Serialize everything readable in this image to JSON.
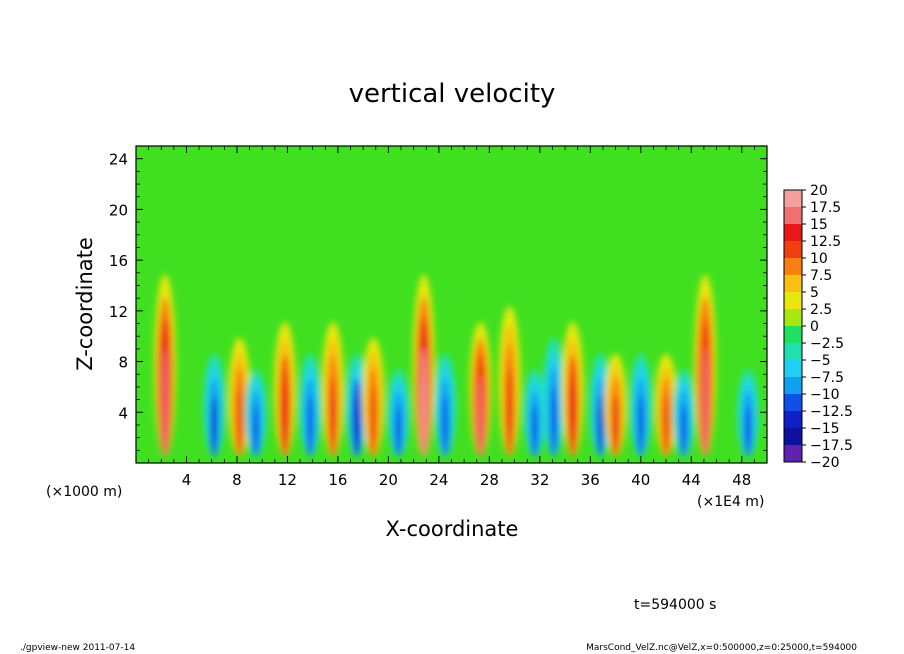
{
  "chart_data": {
    "type": "heatmap",
    "title": "vertical velocity",
    "xlabel": "X-coordinate",
    "ylabel": "Z-coordinate",
    "x_unit": "(×1E4 m)",
    "y_unit": "(×1000 m)",
    "xlim": [
      0,
      50
    ],
    "ylim": [
      0,
      25
    ],
    "x_ticks": [
      "4",
      "8",
      "12",
      "16",
      "20",
      "24",
      "28",
      "32",
      "36",
      "40",
      "44",
      "48"
    ],
    "y_ticks": [
      "4",
      "8",
      "12",
      "16",
      "20",
      "24"
    ],
    "colorbar": {
      "levels": [
        "20",
        "17.5",
        "15",
        "12.5",
        "10",
        "7.5",
        "5",
        "2.5",
        "0",
        "−2.5",
        "−5",
        "−7.5",
        "−10",
        "−12.5",
        "−15",
        "−17.5",
        "−20"
      ],
      "colors": [
        "#f5a0a0",
        "#f07070",
        "#e81818",
        "#f04010",
        "#f88010",
        "#f8c010",
        "#e8e810",
        "#a8e810",
        "#40e020",
        "#20e060",
        "#20e0b0",
        "#20d0f0",
        "#10a0f0",
        "#1050e8",
        "#1020c8",
        "#1010a0",
        "#6020b0"
      ]
    },
    "features": [
      {
        "x": 2.3,
        "top": 12,
        "v": 18
      },
      {
        "x": 6.2,
        "top": 7,
        "v": -14
      },
      {
        "x": 8.2,
        "top": 8,
        "v": 13
      },
      {
        "x": 9.5,
        "top": 6,
        "v": -13
      },
      {
        "x": 11.8,
        "top": 9,
        "v": 15
      },
      {
        "x": 13.8,
        "top": 7,
        "v": -13
      },
      {
        "x": 15.6,
        "top": 9,
        "v": 14
      },
      {
        "x": 17.5,
        "top": 7,
        "v": -15
      },
      {
        "x": 18.8,
        "top": 8,
        "v": 13
      },
      {
        "x": 20.8,
        "top": 6,
        "v": -12
      },
      {
        "x": 22.8,
        "top": 12,
        "v": 19
      },
      {
        "x": 24.5,
        "top": 7,
        "v": -12
      },
      {
        "x": 27.3,
        "top": 9,
        "v": 17
      },
      {
        "x": 29.6,
        "top": 10,
        "v": 14
      },
      {
        "x": 31.6,
        "top": 6,
        "v": -13
      },
      {
        "x": 33.1,
        "top": 8,
        "v": -12
      },
      {
        "x": 34.6,
        "top": 9,
        "v": 15
      },
      {
        "x": 36.8,
        "top": 7,
        "v": -14
      },
      {
        "x": 38.0,
        "top": 7,
        "v": 14
      },
      {
        "x": 40.0,
        "top": 7,
        "v": -13
      },
      {
        "x": 42.0,
        "top": 7,
        "v": 13
      },
      {
        "x": 43.4,
        "top": 6,
        "v": -12
      },
      {
        "x": 45.1,
        "top": 12,
        "v": 17
      },
      {
        "x": 48.5,
        "top": 6,
        "v": -13
      }
    ]
  },
  "annotations": {
    "time": "t=594000 s",
    "footer_left": "./gpview-new  2011-07-14",
    "footer_right": "MarsCond_VelZ.nc@VelZ,x=0:500000,z=0:25000,t=594000"
  }
}
